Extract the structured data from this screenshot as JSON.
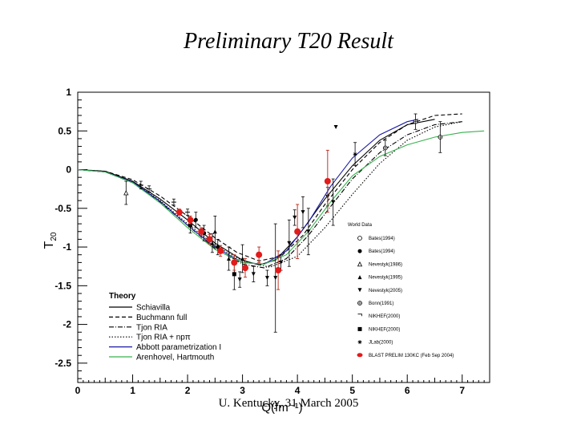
{
  "slide_title": "Preliminary T20 Result",
  "footer": "U. Kentucky, 31 March 2005",
  "chart_data": {
    "type": "line",
    "title": "",
    "xlabel": "Q(fm⁻¹)",
    "ylabel": "T20",
    "xlim": [
      0,
      7.5
    ],
    "ylim": [
      -2.75,
      1
    ],
    "x_ticks": [
      "0",
      "1",
      "2",
      "3",
      "4",
      "5",
      "6",
      "7"
    ],
    "y_ticks": [
      "1",
      "0.5",
      "0",
      "-0.5",
      "-1",
      "-1.5",
      "-2",
      "-2.5"
    ],
    "theory_legend_title": "Theory",
    "world_data_title": "World Data",
    "theory_curves": [
      {
        "name": "Schiavilla",
        "style": "solid",
        "color": "#000000",
        "x": [
          0,
          0.5,
          1,
          1.5,
          2,
          2.5,
          3,
          3.3,
          3.6,
          4,
          4.5,
          5,
          5.5,
          6,
          6.5
        ],
        "y": [
          0,
          -0.02,
          -0.15,
          -0.38,
          -0.65,
          -0.95,
          -1.17,
          -1.23,
          -1.17,
          -0.87,
          -0.38,
          0.05,
          0.38,
          0.58,
          0.65
        ]
      },
      {
        "name": "Buchmann full",
        "style": "dashed",
        "color": "#000000",
        "x": [
          0,
          0.5,
          1,
          1.5,
          2,
          2.5,
          2.9,
          3.3,
          3.7,
          4.1,
          4.5,
          5,
          5.5,
          6,
          6.5,
          7
        ],
        "y": [
          0,
          -0.02,
          -0.13,
          -0.34,
          -0.6,
          -0.88,
          -1.07,
          -1.18,
          -1.12,
          -0.85,
          -0.45,
          0.0,
          0.35,
          0.58,
          0.7,
          0.72
        ]
      },
      {
        "name": "Tjon RIA",
        "style": "dashdot",
        "color": "#000000",
        "x": [
          0,
          0.5,
          1,
          1.5,
          2,
          2.5,
          3,
          3.4,
          3.8,
          4.2,
          4.6,
          5,
          5.5,
          6,
          6.5,
          7
        ],
        "y": [
          0,
          -0.03,
          -0.17,
          -0.42,
          -0.72,
          -1.02,
          -1.22,
          -1.27,
          -1.15,
          -0.85,
          -0.48,
          -0.12,
          0.22,
          0.45,
          0.58,
          0.62
        ]
      },
      {
        "name": "Tjon RIA + npπ",
        "style": "dotted",
        "color": "#000000",
        "x": [
          0,
          0.5,
          1,
          1.5,
          2,
          2.5,
          3,
          3.5,
          4,
          4.5,
          5,
          5.5,
          6,
          6.5,
          7
        ],
        "y": [
          0,
          -0.03,
          -0.16,
          -0.4,
          -0.7,
          -0.98,
          -1.18,
          -1.26,
          -1.12,
          -0.75,
          -0.32,
          0.08,
          0.38,
          0.55,
          0.62
        ]
      },
      {
        "name": "Abbott parametrization I",
        "style": "solid",
        "color": "#1a1aa6",
        "x": [
          0,
          0.5,
          1,
          1.5,
          2,
          2.5,
          3,
          3.4,
          3.8,
          4.2,
          4.6,
          5,
          5.5,
          6,
          6.2
        ],
        "y": [
          0,
          -0.03,
          -0.16,
          -0.41,
          -0.72,
          -1.0,
          -1.2,
          -1.22,
          -1.05,
          -0.68,
          -0.22,
          0.15,
          0.45,
          0.62,
          0.65
        ]
      },
      {
        "name": "Arenhovel, Hartmouth",
        "style": "solid",
        "color": "#37b24d",
        "x": [
          0,
          0.5,
          1,
          1.5,
          2,
          2.5,
          3,
          3.4,
          3.8,
          4.2,
          4.6,
          5,
          5.5,
          6,
          6.5,
          7,
          7.4
        ],
        "y": [
          0,
          -0.03,
          -0.17,
          -0.43,
          -0.75,
          -1.03,
          -1.2,
          -1.22,
          -1.1,
          -0.8,
          -0.42,
          -0.08,
          0.17,
          0.32,
          0.42,
          0.48,
          0.5
        ]
      }
    ],
    "world_data": [
      {
        "name": "Bates(1994)",
        "marker": "open-circle"
      },
      {
        "name": "Bates(1994)",
        "marker": "filled-circle"
      },
      {
        "name": "Nevestyk(1986)",
        "marker": "open-triangle"
      },
      {
        "name": "Nevestyk(1995)",
        "marker": "filled-triangle"
      },
      {
        "name": "Nevestyk(2005)",
        "marker": "filled-triangle-down"
      },
      {
        "name": "Bonn(1991)",
        "marker": "open-circle-cross"
      },
      {
        "name": "NIKHEF(2000)",
        "marker": "open-square-half"
      },
      {
        "name": "NIKHEF(2000)",
        "marker": "filled-square"
      },
      {
        "name": "JLab(2000)",
        "marker": "star"
      },
      {
        "name": "BLAST PRELIM 130KC (Feb Sep 2004)",
        "marker": "filled-circle-red"
      }
    ],
    "world_points": [
      {
        "x": 0.88,
        "y": -0.3,
        "err": 0.15,
        "m": "open-triangle"
      },
      {
        "x": 1.15,
        "y": -0.2,
        "err": 0.05,
        "m": "dash"
      },
      {
        "x": 1.3,
        "y": -0.25,
        "err": 0.04,
        "m": "dash"
      },
      {
        "x": 1.75,
        "y": -0.42,
        "err": 0.04,
        "m": "dash"
      },
      {
        "x": 2.0,
        "y": -0.55,
        "err": 0.04,
        "m": "dash"
      },
      {
        "x": 2.05,
        "y": -0.72,
        "err": 0.1,
        "m": "filled-square"
      },
      {
        "x": 2.15,
        "y": -0.65,
        "err": 0.1,
        "m": "filled-circle"
      },
      {
        "x": 2.3,
        "y": -0.82,
        "err": 0.1,
        "m": "filled-circle"
      },
      {
        "x": 2.45,
        "y": -0.95,
        "err": 0.12,
        "m": "filled-triangle"
      },
      {
        "x": 2.5,
        "y": -0.8,
        "err": 0.2,
        "m": "filled-triangle"
      },
      {
        "x": 2.55,
        "y": -1.0,
        "err": 0.1,
        "m": "filled-circle"
      },
      {
        "x": 2.75,
        "y": -1.15,
        "err": 0.15,
        "m": "filled-triangle"
      },
      {
        "x": 2.85,
        "y": -1.35,
        "err": 0.2,
        "m": "filled-square"
      },
      {
        "x": 2.95,
        "y": -1.42,
        "err": 0.1,
        "m": "filled-triangle-down"
      },
      {
        "x": 3.0,
        "y": -1.15,
        "err": 0.18,
        "m": "filled-triangle"
      },
      {
        "x": 3.2,
        "y": -1.35,
        "err": 0.1,
        "m": "filled-triangle-down"
      },
      {
        "x": 3.45,
        "y": -1.4,
        "err": 0.1,
        "m": "filled-triangle-down"
      },
      {
        "x": 3.6,
        "y": -1.4,
        "err": 0.7,
        "m": "filled-triangle-down"
      },
      {
        "x": 3.7,
        "y": -1.2,
        "err": 0.1,
        "m": "filled-triangle-down"
      },
      {
        "x": 3.85,
        "y": -0.95,
        "err": 0.3,
        "m": "filled-triangle-down"
      },
      {
        "x": 3.95,
        "y": -0.62,
        "err": 0.1,
        "m": "filled-triangle-down"
      },
      {
        "x": 4.1,
        "y": -0.55,
        "err": 0.2,
        "m": "filled-triangle-down"
      },
      {
        "x": 4.2,
        "y": -0.8,
        "err": 0.3,
        "m": "filled-triangle-down"
      },
      {
        "x": 4.55,
        "y": -0.35,
        "err": 0.12,
        "m": "filled-triangle-down"
      },
      {
        "x": 4.65,
        "y": -0.42,
        "err": 0.3,
        "m": "filled-triangle-down"
      },
      {
        "x": 4.7,
        "y": 0.55,
        "err": 0.0,
        "m": "filled-triangle-down"
      },
      {
        "x": 5.05,
        "y": 0.2,
        "err": 0.15,
        "m": "star"
      },
      {
        "x": 5.6,
        "y": 0.28,
        "err": 0.1,
        "m": "open-circle-cross"
      },
      {
        "x": 6.15,
        "y": 0.62,
        "err": 0.1,
        "m": "open-circle-cross"
      },
      {
        "x": 6.6,
        "y": 0.42,
        "err": 0.2,
        "m": "open-circle-cross"
      }
    ],
    "blast_points": [
      {
        "x": 1.85,
        "y": -0.55,
        "err": 0.04
      },
      {
        "x": 2.05,
        "y": -0.65,
        "err": 0.05
      },
      {
        "x": 2.25,
        "y": -0.8,
        "err": 0.05
      },
      {
        "x": 2.4,
        "y": -0.9,
        "err": 0.06
      },
      {
        "x": 2.6,
        "y": -1.05,
        "err": 0.07
      },
      {
        "x": 2.85,
        "y": -1.2,
        "err": 0.1
      },
      {
        "x": 3.05,
        "y": -1.27,
        "err": 0.12
      },
      {
        "x": 3.3,
        "y": -1.1,
        "err": 0.1
      },
      {
        "x": 3.65,
        "y": -1.3,
        "err": 0.25
      },
      {
        "x": 4.0,
        "y": -0.8,
        "err": 0.35
      },
      {
        "x": 4.55,
        "y": -0.15,
        "err": 0.4
      }
    ]
  }
}
